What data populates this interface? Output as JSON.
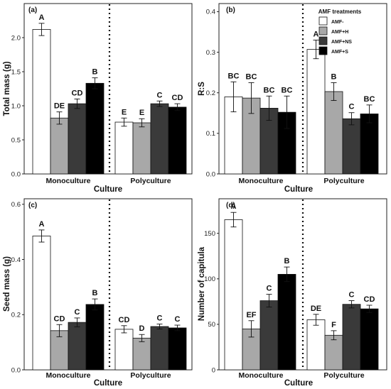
{
  "legend": {
    "title": "AMF treatments",
    "entries": [
      "AMF-",
      "AMF+H",
      "AMF+NS",
      "AMF+S"
    ]
  },
  "colors": {
    "AMF-": "#ffffff",
    "AMF+H": "#a8a8a8",
    "AMF+NS": "#3a3a3a",
    "AMF+S": "#000000"
  },
  "chart_data": [
    {
      "type": "bar",
      "panel": "(a)",
      "ylabel": "Total mass (g)",
      "xlabel": "Culture",
      "categories": [
        "Monoculture",
        "Polyculture"
      ],
      "ylim": [
        0,
        2.5
      ],
      "yticks": [
        "0.0",
        "0.5",
        "1.0",
        "1.5",
        "2.0"
      ],
      "series": [
        {
          "name": "AMF-",
          "values": [
            2.12,
            0.76
          ],
          "errors": [
            0.09,
            0.06
          ],
          "labels": [
            "A",
            "E"
          ]
        },
        {
          "name": "AMF+H",
          "values": [
            0.82,
            0.75
          ],
          "errors": [
            0.09,
            0.06
          ],
          "labels": [
            "DE",
            "E"
          ]
        },
        {
          "name": "AMF+NS",
          "values": [
            1.03,
            1.03
          ],
          "errors": [
            0.07,
            0.04
          ],
          "labels": [
            "CD",
            "C"
          ]
        },
        {
          "name": "AMF+S",
          "values": [
            1.33,
            0.98
          ],
          "errors": [
            0.08,
            0.05
          ],
          "labels": [
            "B",
            "CD"
          ]
        }
      ]
    },
    {
      "type": "bar",
      "panel": "(b)",
      "ylabel": "R:S",
      "xlabel": "Culture",
      "categories": [
        "Monoculture",
        "Polyculture"
      ],
      "ylim": [
        0,
        0.42
      ],
      "yticks": [
        "0.0",
        "0.1",
        "0.2",
        "0.3",
        "0.4"
      ],
      "series": [
        {
          "name": "AMF-",
          "values": [
            0.19,
            0.307
          ],
          "errors": [
            0.037,
            0.023
          ],
          "labels": [
            "BC",
            "A"
          ]
        },
        {
          "name": "AMF+H",
          "values": [
            0.187,
            0.203
          ],
          "errors": [
            0.038,
            0.022
          ],
          "labels": [
            "BC",
            "B"
          ]
        },
        {
          "name": "AMF+NS",
          "values": [
            0.162,
            0.136
          ],
          "errors": [
            0.03,
            0.015
          ],
          "labels": [
            "BC",
            "C"
          ]
        },
        {
          "name": "AMF+S",
          "values": [
            0.152,
            0.148
          ],
          "errors": [
            0.04,
            0.022
          ],
          "labels": [
            "BC",
            "BC"
          ]
        }
      ]
    },
    {
      "type": "bar",
      "panel": "(c)",
      "ylabel": "Seed mass (g)",
      "xlabel": "Culture",
      "categories": [
        "Monoculture",
        "Polyculture"
      ],
      "ylim": [
        0,
        0.62
      ],
      "yticks": [
        "0.0",
        "0.2",
        "0.4",
        "0.6"
      ],
      "series": [
        {
          "name": "AMF-",
          "values": [
            0.485,
            0.147
          ],
          "errors": [
            0.022,
            0.013
          ],
          "labels": [
            "A",
            "CD"
          ]
        },
        {
          "name": "AMF+H",
          "values": [
            0.142,
            0.115
          ],
          "errors": [
            0.022,
            0.013
          ],
          "labels": [
            "CD",
            "D"
          ]
        },
        {
          "name": "AMF+NS",
          "values": [
            0.172,
            0.157
          ],
          "errors": [
            0.016,
            0.009
          ],
          "labels": [
            "C",
            "C"
          ]
        },
        {
          "name": "AMF+S",
          "values": [
            0.237,
            0.152
          ],
          "errors": [
            0.02,
            0.01
          ],
          "labels": [
            "B",
            "C"
          ]
        }
      ]
    },
    {
      "type": "bar",
      "panel": "(d)",
      "ylabel": "Number of capitula",
      "xlabel": "Culture",
      "categories": [
        "Monoculture",
        "Polyculture"
      ],
      "ylim": [
        0,
        188
      ],
      "yticks": [
        "0",
        "50",
        "100",
        "150"
      ],
      "series": [
        {
          "name": "AMF-",
          "values": [
            165,
            55
          ],
          "errors": [
            8,
            6
          ],
          "labels": [
            "A",
            "DE"
          ]
        },
        {
          "name": "AMF+H",
          "values": [
            45,
            38
          ],
          "errors": [
            9,
            5
          ],
          "labels": [
            "EF",
            "F"
          ]
        },
        {
          "name": "AMF+NS",
          "values": [
            76,
            72
          ],
          "errors": [
            7,
            4
          ],
          "labels": [
            "C",
            "C"
          ]
        },
        {
          "name": "AMF+S",
          "values": [
            105,
            67
          ],
          "errors": [
            8,
            4
          ],
          "labels": [
            "B",
            "CD"
          ]
        }
      ]
    }
  ]
}
